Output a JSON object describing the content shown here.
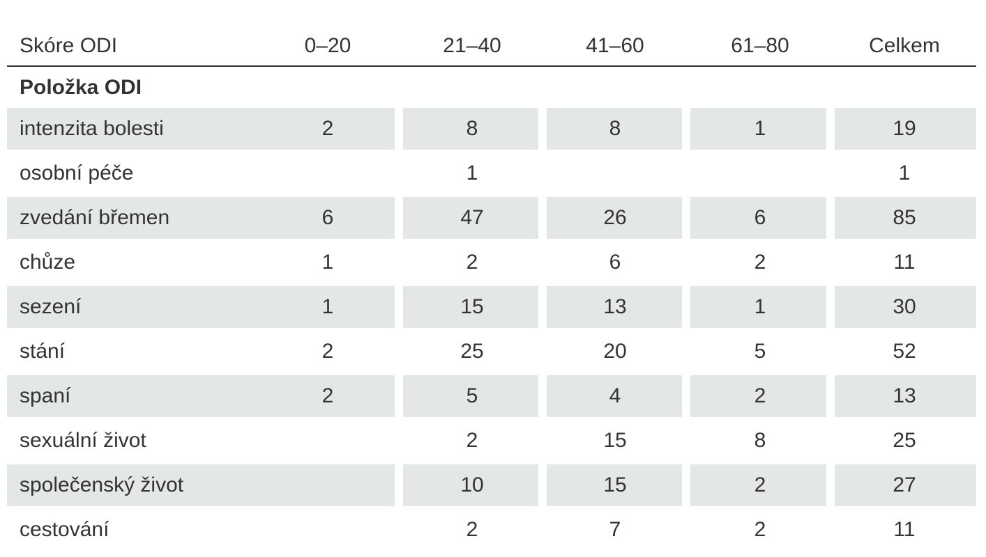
{
  "table": {
    "header": [
      "Skóre ODI",
      "0–20",
      "21–40",
      "41–60",
      "61–80",
      "Celkem"
    ],
    "section": "Položka ODI",
    "rows": [
      [
        "intenzita bolesti",
        2,
        8,
        8,
        1,
        19
      ],
      [
        "osobní péče",
        null,
        1,
        null,
        null,
        1
      ],
      [
        "zvedání břemen",
        6,
        47,
        26,
        6,
        85
      ],
      [
        "chůze",
        1,
        2,
        6,
        2,
        11
      ],
      [
        "sezení",
        1,
        15,
        13,
        1,
        30
      ],
      [
        "stání",
        2,
        25,
        20,
        5,
        52
      ],
      [
        "spaní",
        2,
        5,
        4,
        2,
        13
      ],
      [
        "sexuální život",
        null,
        2,
        15,
        8,
        25
      ],
      [
        "společenský život",
        null,
        10,
        15,
        2,
        27
      ],
      [
        "cestování",
        null,
        2,
        7,
        2,
        11
      ]
    ]
  }
}
